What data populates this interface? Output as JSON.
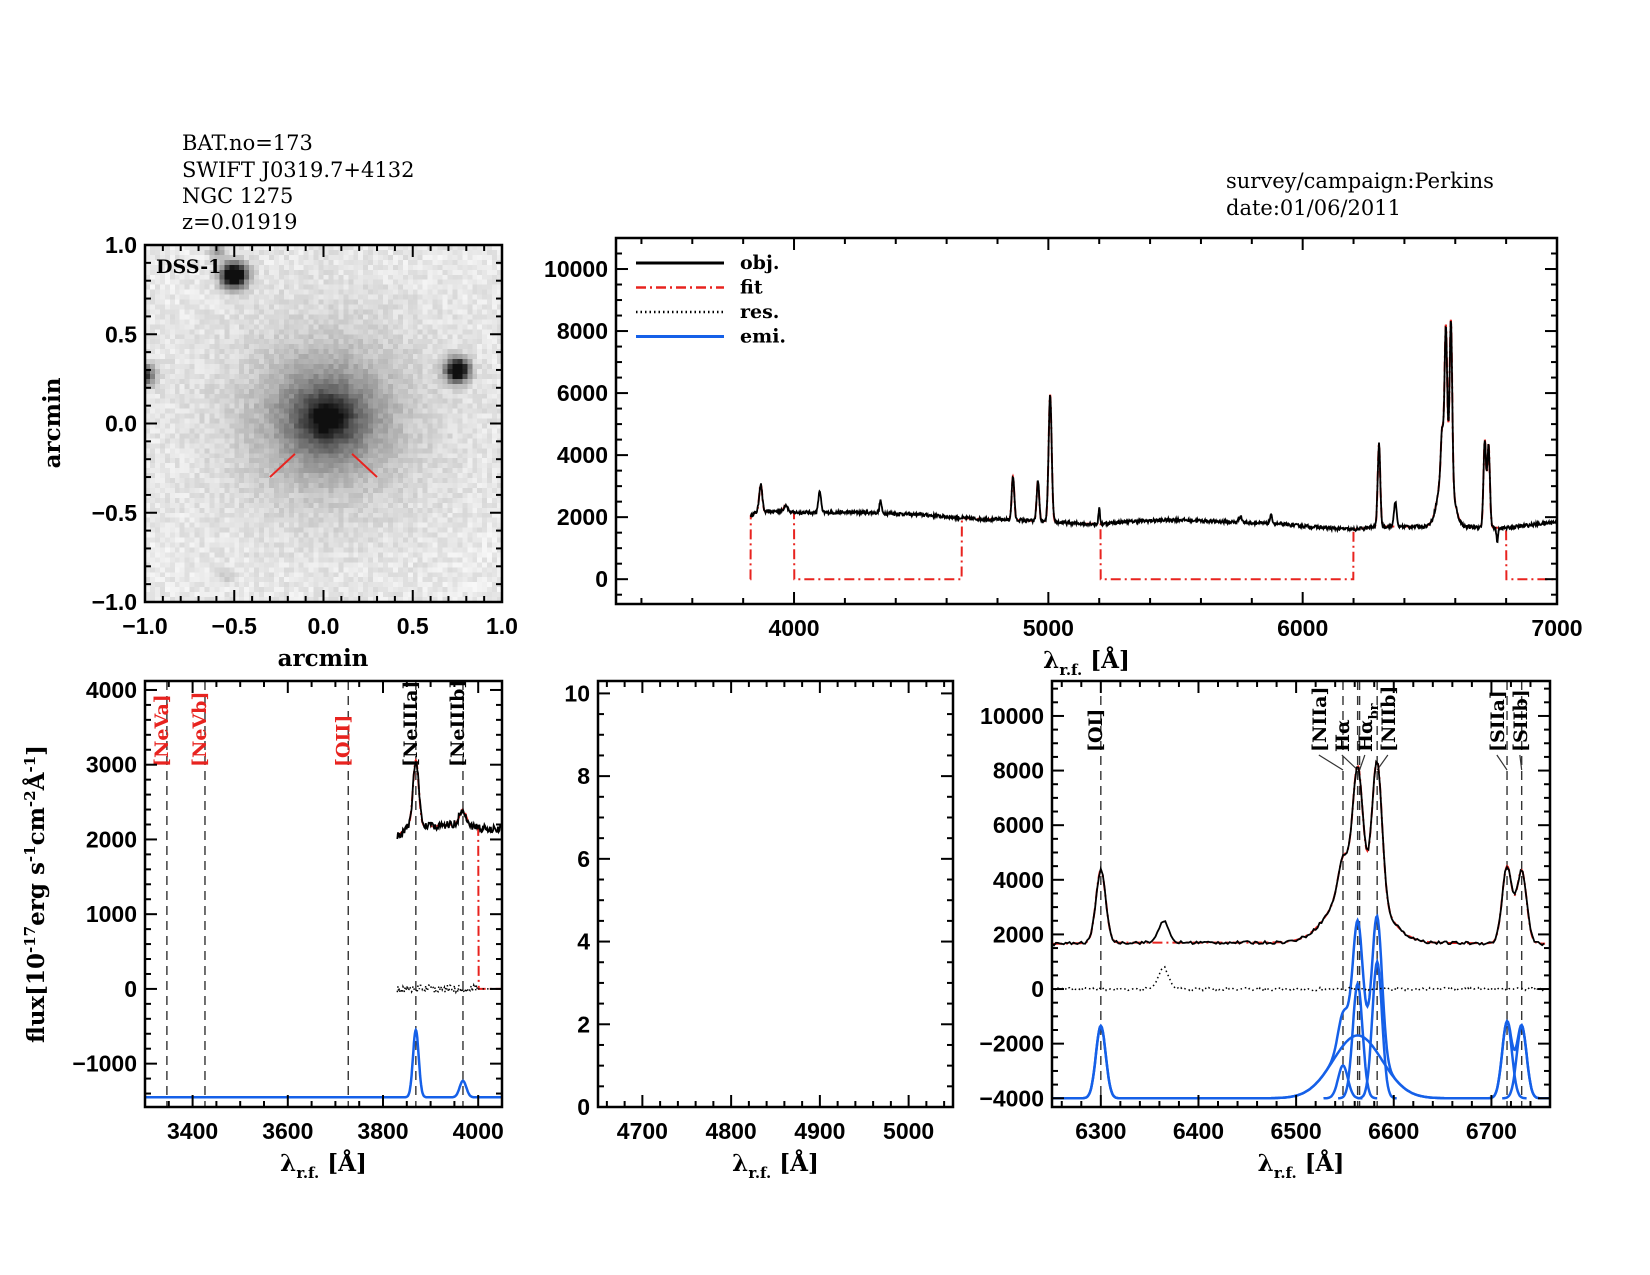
{
  "header": {
    "lines": [
      "BAT.no=173",
      "SWIFT J0319.7+4132",
      "NGC 1275",
      "z=0.01919"
    ],
    "survey": "survey/campaign:Perkins",
    "date": "date:01/06/2011"
  },
  "colors": {
    "obj": "#000000",
    "fit": "#e8231f",
    "res": "#000000",
    "emi": "#1560e8",
    "marker": "#333333",
    "unfitted_label": "#e8231f"
  },
  "chart_data": [
    {
      "type": "image",
      "label": "DSS-1",
      "xlabel": "arcmin",
      "ylabel": "arcmin",
      "xlim": [
        -1,
        1
      ],
      "ylim": [
        -1,
        1
      ],
      "xticks": [
        -1,
        -0.5,
        0,
        0.5,
        1
      ],
      "xtick_labels": [
        "−1.0",
        "−0.5",
        "0.0",
        "0.5",
        "1.0"
      ],
      "yticks": [
        -1,
        -0.5,
        0,
        0.5,
        1
      ],
      "ytick_labels": [
        "−1.0",
        "−0.5",
        "0.0",
        "0.5",
        "1.0"
      ],
      "colormap": "inverted grayscale",
      "marker_color": "#e8231f"
    },
    {
      "type": "line",
      "xlabel": {
        "symbol": "λ",
        "sub": "r.f.",
        "unit": " [Å]"
      },
      "ylabel": [
        [
          "flux[10",
          ""
        ],
        [
          "-17",
          "sup"
        ],
        [
          "erg s",
          ""
        ],
        [
          "-1",
          "sup"
        ],
        [
          "cm",
          ""
        ],
        [
          "-2",
          "sup"
        ],
        [
          "Å",
          ""
        ],
        [
          "-1",
          "sup"
        ],
        [
          "]",
          ""
        ]
      ],
      "xlim": [
        3300,
        7000
      ],
      "ylim": [
        -800,
        11000
      ],
      "xticks": [
        4000,
        5000,
        6000,
        7000
      ],
      "xtick_labels": [
        "4000",
        "5000",
        "6000",
        "7000"
      ],
      "yticks": [
        0,
        2000,
        4000,
        6000,
        8000,
        10000
      ],
      "ytick_labels": [
        "0",
        "2000",
        "4000",
        "6000",
        "8000",
        "10000"
      ],
      "legend_position": "top-left",
      "legend": [
        {
          "label": "obj.",
          "color": "#000000",
          "style": "solid"
        },
        {
          "label": "fit",
          "color": "#e8231f",
          "style": "dash-dot"
        },
        {
          "label": "res.",
          "color": "#000000",
          "style": "dotted"
        },
        {
          "label": "emi.",
          "color": "#1560e8",
          "style": "solid"
        }
      ],
      "obj_range": [
        3830,
        7000
      ],
      "fit_windows": [
        [
          3830,
          4000
        ],
        [
          4660,
          5205
        ],
        [
          6200,
          6800
        ]
      ],
      "continuum": [
        [
          3830,
          2050
        ],
        [
          3850,
          2150
        ],
        [
          3950,
          2200
        ],
        [
          4000,
          2150
        ],
        [
          4300,
          2150
        ],
        [
          4500,
          2080
        ],
        [
          4700,
          1950
        ],
        [
          4900,
          1900
        ],
        [
          5100,
          1800
        ],
        [
          5200,
          1780
        ],
        [
          5300,
          1850
        ],
        [
          5500,
          1920
        ],
        [
          5700,
          1850
        ],
        [
          5900,
          1780
        ],
        [
          6100,
          1650
        ],
        [
          6200,
          1600
        ],
        [
          6300,
          1700
        ],
        [
          6500,
          1700
        ],
        [
          6700,
          1680
        ],
        [
          6800,
          1650
        ],
        [
          7000,
          1850
        ]
      ],
      "emission_lines": [
        {
          "wavelength": 3869,
          "amplitude": 900,
          "sigma": 6,
          "fitted": true
        },
        {
          "wavelength": 3968,
          "amplitude": 220,
          "sigma": 7,
          "fitted": true
        },
        {
          "wavelength": 4101,
          "amplitude": 700,
          "sigma": 5,
          "fitted": false
        },
        {
          "wavelength": 4340,
          "amplitude": 400,
          "sigma": 4,
          "fitted": false
        },
        {
          "wavelength": 4861,
          "amplitude": 1400,
          "sigma": 5,
          "fitted": true
        },
        {
          "wavelength": 4959,
          "amplitude": 1300,
          "sigma": 5,
          "fitted": true
        },
        {
          "wavelength": 5007,
          "amplitude": 4100,
          "sigma": 6,
          "fitted": true
        },
        {
          "wavelength": 5200,
          "amplitude": 500,
          "sigma": 3,
          "fitted": false
        },
        {
          "wavelength": 5755,
          "amplitude": 200,
          "sigma": 6,
          "fitted": false
        },
        {
          "wavelength": 5876,
          "amplitude": 250,
          "sigma": 5,
          "fitted": false
        },
        {
          "wavelength": 6300,
          "amplitude": 2650,
          "sigma": 5,
          "fitted": true
        },
        {
          "wavelength": 6364,
          "amplitude": 800,
          "sigma": 5,
          "fitted": false
        },
        {
          "wavelength": 6548,
          "amplitude": 1200,
          "sigma": 5,
          "fitted": true
        },
        {
          "wavelength": 6563,
          "amplitude": 4200,
          "sigma": 5,
          "fitted": true
        },
        {
          "wavelength": 6563,
          "amplitude": 2300,
          "sigma": 25,
          "fitted": true
        },
        {
          "wavelength": 6583,
          "amplitude": 5000,
          "sigma": 5,
          "fitted": true
        },
        {
          "wavelength": 6716,
          "amplitude": 2800,
          "sigma": 5,
          "fitted": true
        },
        {
          "wavelength": 6731,
          "amplitude": 2650,
          "sigma": 5,
          "fitted": true
        },
        {
          "wavelength": 6765,
          "amplitude": -500,
          "sigma": 3,
          "fitted": false
        }
      ]
    },
    {
      "type": "line",
      "xlabel": {
        "symbol": "λ",
        "sub": "r.f.",
        "unit": " [Å]"
      },
      "ylabel": [
        [
          "flux[10",
          ""
        ],
        [
          "-17",
          "sup"
        ],
        [
          "erg s",
          ""
        ],
        [
          "-1",
          "sup"
        ],
        [
          "cm",
          ""
        ],
        [
          "-2",
          "sup"
        ],
        [
          "Å",
          ""
        ],
        [
          "-1",
          "sup"
        ],
        [
          "]",
          ""
        ]
      ],
      "xlim": [
        3300,
        4050
      ],
      "ylim": [
        -1580,
        4120
      ],
      "xticks": [
        3400,
        3600,
        3800,
        4000
      ],
      "xtick_labels": [
        "3400",
        "3600",
        "3800",
        "4000"
      ],
      "yticks": [
        -1000,
        0,
        1000,
        2000,
        3000,
        4000
      ],
      "ytick_labels": [
        "−1000",
        "0",
        "1000",
        "2000",
        "3000",
        "4000"
      ],
      "obj_range": [
        3830,
        4050
      ],
      "emission_baseline": -1450,
      "marked_lines": [
        {
          "label": "[NeVa]",
          "wavelength": 3346,
          "color": "#e8231f"
        },
        {
          "label": "[NeVb]",
          "wavelength": 3426,
          "color": "#e8231f"
        },
        {
          "label": "[OII]",
          "wavelength": 3727,
          "color": "#e8231f"
        },
        {
          "label": "[NeIIIa]",
          "wavelength": 3869,
          "color": "#000000"
        },
        {
          "label": "[NeIIIb]",
          "wavelength": 3968,
          "color": "#000000"
        }
      ]
    },
    {
      "type": "line",
      "xlabel": {
        "symbol": "λ",
        "sub": "r.f.",
        "unit": " [Å]"
      },
      "xlim": [
        4650,
        5050
      ],
      "ylim": [
        0,
        10.3
      ],
      "xticks": [
        4700,
        4800,
        4900,
        5000
      ],
      "xtick_labels": [
        "4700",
        "4800",
        "4900",
        "5000"
      ],
      "yticks": [
        0,
        2,
        4,
        6,
        8,
        10
      ],
      "ytick_labels": [
        "0",
        "2",
        "4",
        "6",
        "8",
        "10"
      ]
    },
    {
      "type": "line",
      "xlabel": {
        "symbol": "λ",
        "sub": "r.f.",
        "unit": " [Å]"
      },
      "xlim": [
        6250,
        6760
      ],
      "ylim": [
        -4320,
        11280
      ],
      "xticks": [
        6300,
        6400,
        6500,
        6600,
        6700
      ],
      "xtick_labels": [
        "6300",
        "6400",
        "6500",
        "6600",
        "6700"
      ],
      "yticks": [
        -4000,
        -2000,
        0,
        2000,
        4000,
        6000,
        8000,
        10000
      ],
      "ytick_labels": [
        "−4000",
        "−2000",
        "0",
        "2000",
        "4000",
        "6000",
        "8000",
        "10000"
      ],
      "obj_range": [
        6250,
        6755
      ],
      "emission_baseline": -4000,
      "marked_lines": [
        {
          "label": "[OI]",
          "wavelength": 6300,
          "color": "#000000"
        },
        {
          "label": "[NIIa]",
          "wavelength": 6548,
          "color": "#000000"
        },
        {
          "label": "Hα",
          "wavelength": 6563,
          "color": "#000000"
        },
        {
          "label": "Hα",
          "sub": "br",
          "wavelength": 6565,
          "color": "#000000"
        },
        {
          "label": "[NIIb]",
          "wavelength": 6583,
          "color": "#000000"
        },
        {
          "label": "[SIIa]",
          "wavelength": 6716,
          "color": "#000000"
        },
        {
          "label": "[SIIb]",
          "wavelength": 6731,
          "color": "#000000"
        }
      ]
    }
  ]
}
